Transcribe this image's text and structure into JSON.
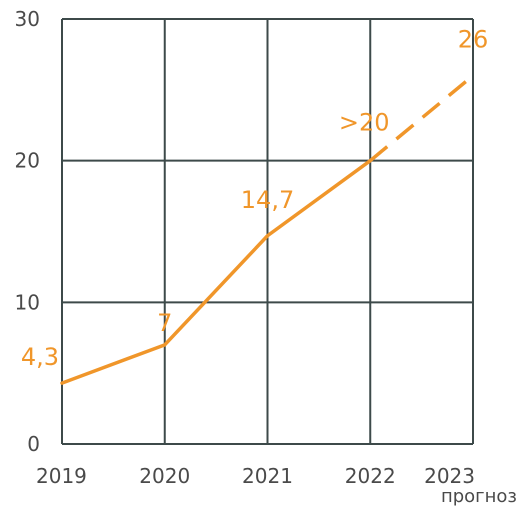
{
  "chart_data": {
    "type": "line",
    "title": "",
    "xlabel": "",
    "ylabel": "",
    "categories": [
      "2019",
      "2020",
      "2021",
      "2022",
      "2023"
    ],
    "x_sublabel": {
      "category": "2023",
      "text": "прогноз"
    },
    "ylim": [
      0,
      30
    ],
    "yticks": [
      "0",
      "10",
      "20",
      "30"
    ],
    "grid": true,
    "series": [
      {
        "values": [
          4.3,
          7,
          14.7,
          20,
          26
        ],
        "data_labels": [
          "4,3",
          "7",
          "14,7",
          ">20",
          "26"
        ],
        "dashed_from_category": "2022",
        "color": "#f0962a"
      }
    ],
    "grid_color": "#3d4a4a",
    "tick_color": "#4a4a4a"
  }
}
